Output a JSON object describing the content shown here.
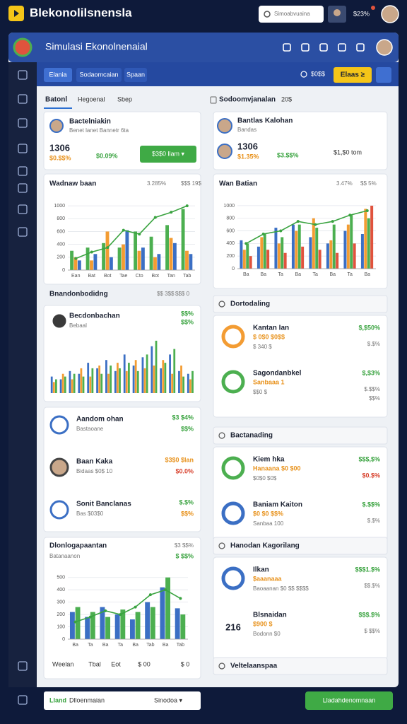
{
  "topbar": {
    "title": "Blekonolilsnensla",
    "search": "Simoabvuaina",
    "balance": "$23%"
  },
  "header": {
    "title": "Simulasi Ekonolnenaial"
  },
  "tabs": [
    "Elania",
    "Sodaomcaian",
    "Spaan"
  ],
  "toolbar": {
    "stat": "$0$$",
    "button": "Elaas ≥"
  },
  "left": {
    "subtabs": [
      "Batonl",
      "Hegoenal",
      "Sbep"
    ],
    "profile": {
      "name": "Bactelniakin",
      "sub": "Benet lanet Bannetr 6ta",
      "value": "1306",
      "delta": "$0.$$%",
      "pct": "$0.09%",
      "button": "$3$0 llam ▾"
    },
    "chart1": {
      "title": "Wadnaw baan",
      "stats": [
        "3.285%",
        "$$$ 19$"
      ],
      "ylim": [
        0,
        1100
      ],
      "yticks": [
        0,
        200,
        400,
        600,
        800,
        1000
      ],
      "categories": [
        "Ean",
        "Bat",
        "Bot",
        "Tae",
        "Cto",
        "Bot",
        "Tan",
        "Tab"
      ],
      "series": [
        {
          "color": "#4caf50",
          "values": [
            300,
            350,
            420,
            350,
            600,
            520,
            700,
            950
          ]
        },
        {
          "color": "#f39c33",
          "values": [
            200,
            150,
            600,
            400,
            300,
            200,
            500,
            300
          ]
        },
        {
          "color": "#3b6fc4",
          "values": [
            150,
            250,
            200,
            620,
            350,
            250,
            420,
            250
          ]
        }
      ],
      "line": [
        180,
        280,
        350,
        620,
        560,
        820,
        900,
        1000
      ]
    },
    "section": {
      "title": "Bnandonbodidng",
      "stats": [
        "$$ 3$$",
        "$$$ 0"
      ]
    },
    "leader": {
      "name": "Becdonbachan",
      "sub": "Bebaal",
      "stats": [
        "$$%",
        "$$%"
      ],
      "chart": {
        "ylim": [
          0,
          100
        ],
        "series": [
          {
            "color": "#3b6fc4",
            "values": [
              30,
              25,
              40,
              35,
              55,
              45,
              60,
              40,
              70,
              50,
              65,
              85,
              45,
              70,
              40,
              35
            ]
          },
          {
            "color": "#f39c33",
            "values": [
              20,
              35,
              25,
              45,
              30,
              50,
              35,
              55,
              40,
              60,
              45,
              50,
              60,
              35,
              50,
              25
            ]
          },
          {
            "color": "#4caf50",
            "values": [
              25,
              30,
              35,
              30,
              45,
              35,
              50,
              45,
              55,
              40,
              70,
              95,
              55,
              80,
              30,
              40
            ]
          }
        ]
      }
    },
    "list": [
      {
        "name": "Aandom ohan",
        "sub": "Bastaoane",
        "stats": [
          "$3 $4%",
          "$$%"
        ]
      },
      {
        "name": "Baan Kaka",
        "sub": "Bidaas $0$ 10",
        "stats": [
          "$3$0 $lan",
          "$0.0%"
        ]
      },
      {
        "name": "Sonit Banclanas",
        "sub": "Bas $03$0",
        "stats": [
          "$.$%",
          "$$%"
        ]
      }
    ],
    "chart4": {
      "title": "Dlonlogapaantan",
      "sub": "Batanaanon",
      "stats": [
        "$3 $$%",
        "$ $$%"
      ],
      "ylim": [
        0,
        550
      ],
      "yticks": [
        0,
        100,
        200,
        300,
        400,
        500
      ],
      "categories": [
        "Ba",
        "Ta",
        "Ba",
        "Ta",
        "Ba",
        "Tab",
        "Ba",
        "Tab"
      ],
      "series": [
        {
          "color": "#3b6fc4",
          "values": [
            220,
            180,
            260,
            200,
            160,
            300,
            420,
            250
          ]
        },
        {
          "color": "#4caf50",
          "values": [
            260,
            220,
            180,
            240,
            220,
            260,
            500,
            200
          ]
        }
      ],
      "line": [
        140,
        180,
        230,
        200,
        260,
        360,
        400,
        330
      ],
      "footer": [
        "Weelan",
        "Tbal",
        "Eot",
        "$ 00",
        "$ 0"
      ]
    }
  },
  "right": {
    "subtitle": "Sodoomvjanalan",
    "year": "20$",
    "profile": {
      "name": "Bantlas Kalohan",
      "sub": "Bandas",
      "value": "1306",
      "pct": "$3.$$%",
      "delta": "$1.35%",
      "amount": "$1,$0 tom"
    },
    "chart2": {
      "title": "Wan Batian",
      "stats": [
        "3.47%",
        "$$ 5%"
      ],
      "ylim": [
        0,
        1100
      ],
      "yticks": [
        0,
        200,
        400,
        600,
        800,
        1000
      ],
      "categories": [
        "Ba",
        "Ba",
        "Ta",
        "Ba",
        "Ta",
        "Ba",
        "Ta",
        "Ba"
      ],
      "series": [
        {
          "color": "#3b6fc4",
          "values": [
            450,
            350,
            650,
            700,
            500,
            400,
            600,
            550
          ]
        },
        {
          "color": "#f39c33",
          "values": [
            300,
            500,
            400,
            600,
            800,
            450,
            700,
            950
          ]
        },
        {
          "color": "#4caf50",
          "values": [
            400,
            550,
            500,
            700,
            650,
            700,
            850,
            800
          ]
        },
        {
          "color": "#e0533d",
          "values": [
            200,
            300,
            250,
            350,
            300,
            250,
            400,
            1000
          ]
        }
      ],
      "line": [
        400,
        550,
        600,
        750,
        700,
        750,
        850,
        920
      ]
    },
    "groups": [
      {
        "title": "Dortodaling",
        "items": [
          {
            "name": "Kantan Ian",
            "sub": "$ 0$0 $0$$",
            "note": "$ 340 $",
            "stats": [
              "$,$50%",
              "$.$%"
            ]
          },
          {
            "name": "Sagondanbkel",
            "sub": "Sanbaaa 1",
            "note": "$$0 $",
            "stats": [
              "$,$3%",
              "$.$$%",
              "$$%"
            ]
          }
        ]
      },
      {
        "title": "Bactanading",
        "items": [
          {
            "name": "Kiem hka",
            "sub": "Hanaana $0 $00",
            "note": "$0$0 $0$",
            "stats": [
              "$$$,$%",
              "$0.$%"
            ]
          },
          {
            "name": "Baniam Kaiton",
            "sub": "$0 $0 $$%",
            "note": "Sanbaa 100",
            "stats": [
              "$.$$%",
              "$.$%"
            ]
          }
        ]
      },
      {
        "title": "Hanodan Kagorilang",
        "items": [
          {
            "name": "Ilkan",
            "sub": "$aaanaaa",
            "note": "Baoaanan $0 $$ $$$$",
            "stats": [
              "$$$1.$%",
              "$$.$%"
            ]
          },
          {
            "name": "Blsnaidan",
            "sub": "$900 $",
            "note": "Bodonn $0",
            "badge": "216",
            "stats": [
              "$$$.$%",
              "$ $$%"
            ]
          }
        ]
      },
      {
        "title": "Veltelaanspaa",
        "items": []
      }
    ]
  },
  "bottombar": {
    "label": "Lland",
    "field": "Dlloenmaian",
    "select": "Sinodoa ▾",
    "button": "Lladahdenomnaan"
  }
}
